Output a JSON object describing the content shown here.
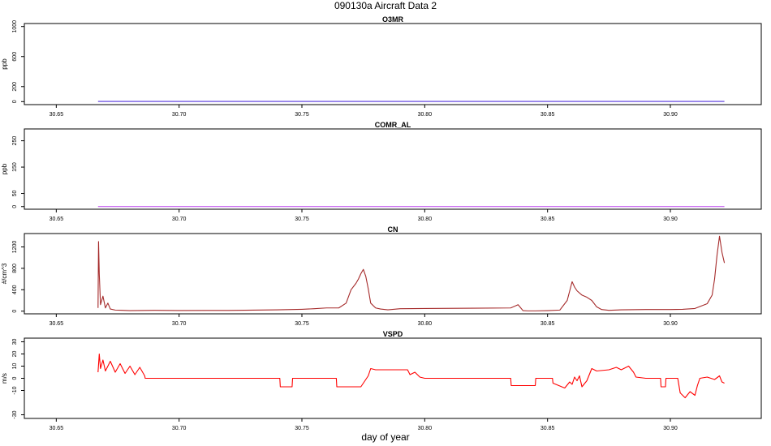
{
  "figure": {
    "title": "090130a   Aircraft Data 2",
    "xlabel": "day of year"
  },
  "chart_data": [
    {
      "type": "line",
      "title": "O3MR",
      "ylabel": "ppb",
      "xlim": [
        30.637,
        30.937
      ],
      "ylim": [
        -40,
        1040
      ],
      "yticks": [
        0,
        200,
        600,
        1000
      ],
      "xticks": [
        "30.65",
        "30.70",
        "30.75",
        "30.80",
        "30.85",
        "30.90"
      ],
      "color": "#5533dd",
      "series": [
        {
          "x": [
            30.667,
            30.922
          ],
          "y": [
            2,
            2
          ]
        }
      ]
    },
    {
      "type": "line",
      "title": "COMR_AL",
      "ylabel": "ppb",
      "xlim": [
        30.637,
        30.937
      ],
      "ylim": [
        -10,
        295
      ],
      "yticks": [
        0,
        50,
        150,
        250
      ],
      "xticks": [
        "30.65",
        "30.70",
        "30.75",
        "30.80",
        "30.85",
        "30.90"
      ],
      "color": "#bb44ee",
      "series": [
        {
          "x": [
            30.667,
            30.922
          ],
          "y": [
            0,
            0
          ]
        }
      ]
    },
    {
      "type": "line",
      "title": "CN",
      "ylabel": "#/cm^3",
      "xlim": [
        30.637,
        30.937
      ],
      "ylim": [
        -50,
        1450
      ],
      "yticks": [
        0,
        400,
        800,
        1200
      ],
      "xticks": [
        "30.65",
        "30.70",
        "30.75",
        "30.80",
        "30.85",
        "30.90"
      ],
      "color": "#a52a2a",
      "series": [
        {
          "x": [
            30.667,
            30.6672,
            30.6675,
            30.668,
            30.669,
            30.67,
            30.671,
            30.672,
            30.674,
            30.677,
            30.68,
            30.69,
            30.7,
            30.72,
            30.74,
            30.75,
            30.755,
            30.76,
            30.765,
            30.768,
            30.77,
            30.772,
            30.773,
            30.774,
            30.775,
            30.776,
            30.777,
            30.778,
            30.78,
            30.782,
            30.785,
            30.79,
            30.8,
            30.82,
            30.835,
            30.838,
            30.84,
            30.842,
            30.845,
            30.85,
            30.855,
            30.858,
            30.86,
            30.861,
            30.862,
            30.864,
            30.866,
            30.868,
            30.87,
            30.872,
            30.875,
            30.88,
            30.89,
            30.9,
            30.905,
            30.91,
            30.915,
            30.917,
            30.918,
            30.919,
            30.92,
            30.921,
            30.922
          ],
          "y": [
            60,
            1300,
            700,
            120,
            280,
            60,
            150,
            40,
            20,
            15,
            10,
            15,
            12,
            14,
            25,
            35,
            45,
            60,
            60,
            150,
            400,
            520,
            600,
            700,
            780,
            650,
            420,
            150,
            60,
            40,
            25,
            45,
            50,
            55,
            60,
            120,
            10,
            5,
            5,
            10,
            20,
            200,
            550,
            450,
            380,
            300,
            260,
            200,
            80,
            30,
            15,
            25,
            30,
            30,
            35,
            50,
            140,
            300,
            600,
            1050,
            1400,
            1100,
            900
          ]
        }
      ]
    },
    {
      "type": "line",
      "title": "VSPD",
      "ylabel": "m/s",
      "xlim": [
        30.637,
        30.937
      ],
      "ylim": [
        -33,
        33
      ],
      "yticks": [
        -30,
        -10,
        0,
        10,
        20,
        30
      ],
      "xticks": [
        "30.65",
        "30.70",
        "30.75",
        "30.80",
        "30.85",
        "30.90"
      ],
      "color": "#ff0000",
      "series": [
        {
          "x": [
            30.667,
            30.6675,
            30.668,
            30.669,
            30.67,
            30.672,
            30.674,
            30.676,
            30.678,
            30.68,
            30.682,
            30.684,
            30.686,
            30.6862,
            30.7,
            30.72,
            30.741,
            30.7412,
            30.746,
            30.7462,
            30.764,
            30.7642,
            30.774,
            30.775,
            30.777,
            30.778,
            30.78,
            30.79,
            30.793,
            30.794,
            30.796,
            30.798,
            30.8,
            30.835,
            30.8352,
            30.845,
            30.8452,
            30.852,
            30.8522,
            30.857,
            30.859,
            30.86,
            30.861,
            30.862,
            30.863,
            30.864,
            30.866,
            30.868,
            30.87,
            30.875,
            30.878,
            30.88,
            30.883,
            30.885,
            30.886,
            30.89,
            30.896,
            30.8962,
            30.898,
            30.8982,
            30.903,
            30.904,
            30.906,
            30.908,
            30.91,
            30.911,
            30.912,
            30.915,
            30.918,
            30.92,
            30.921,
            30.922
          ],
          "y": [
            5,
            20,
            8,
            15,
            6,
            14,
            5,
            12,
            4,
            10,
            3,
            9,
            2,
            0,
            0,
            0,
            0,
            -7,
            -7,
            0,
            0,
            -7,
            -7,
            -4,
            2,
            8,
            7,
            7,
            7,
            3,
            5,
            1,
            0,
            0,
            -6,
            -6,
            0,
            0,
            -4,
            -8,
            -3,
            -5,
            1,
            -2,
            2,
            -7,
            -2,
            8,
            6,
            7,
            9,
            7,
            10,
            5,
            1,
            0,
            0,
            -7,
            -7,
            0,
            0,
            -12,
            -16,
            -11,
            -14,
            -6,
            0,
            1,
            -1,
            2,
            -3,
            -4
          ]
        }
      ]
    }
  ]
}
